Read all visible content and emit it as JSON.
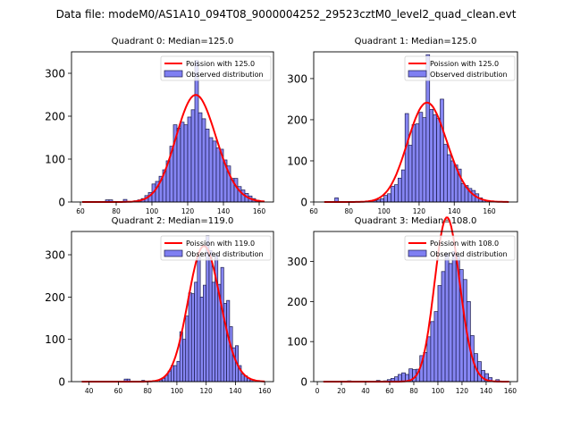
{
  "suptitle": "Data file: modeM0/AS1A10_094T08_9000004252_29523cztM0_level2_quad_clean.evt",
  "colors": {
    "bar_fill": "#7f7ff2",
    "bar_edge": "#1a1a4d",
    "poisson": "#ff0000"
  },
  "chart_data": [
    {
      "type": "bar",
      "title": "Quadrant 0: Median=125.0",
      "xlim": [
        55,
        168
      ],
      "ylim": [
        0,
        350
      ],
      "xticks": [
        60,
        80,
        100,
        120,
        140,
        160
      ],
      "yticks": [
        0,
        100,
        200,
        300
      ],
      "legend": [
        "Poission with 125.0",
        "Observed distribution"
      ],
      "legend_loc": "upper right",
      "median": 125.0,
      "bin_width": 2,
      "bins_x": [
        74,
        76,
        84,
        90,
        92,
        94,
        96,
        98,
        100,
        102,
        104,
        106,
        108,
        110,
        112,
        114,
        116,
        118,
        120,
        122,
        124,
        126,
        128,
        130,
        132,
        134,
        136,
        138,
        140,
        142,
        144,
        146,
        148,
        150,
        152,
        154,
        156,
        158,
        160
      ],
      "counts": [
        5,
        5,
        6,
        3,
        5,
        8,
        15,
        22,
        42,
        48,
        60,
        75,
        96,
        130,
        180,
        172,
        186,
        180,
        198,
        215,
        330,
        208,
        194,
        170,
        150,
        142,
        126,
        123,
        98,
        84,
        55,
        55,
        36,
        28,
        20,
        14,
        8,
        4,
        2
      ]
    },
    {
      "type": "bar",
      "title": "Quadrant 1: Median=125.0",
      "xlim": [
        60,
        176
      ],
      "ylim": [
        0,
        365
      ],
      "xticks": [
        60,
        80,
        100,
        120,
        140,
        160
      ],
      "yticks": [
        0,
        100,
        200,
        300
      ],
      "legend": [
        "Poission with 125.0",
        "Observed distribution"
      ],
      "legend_loc": "upper right",
      "median": 125.0,
      "bin_width": 2,
      "bins_x": [
        72,
        94,
        96,
        98,
        100,
        102,
        104,
        106,
        108,
        110,
        112,
        114,
        116,
        118,
        120,
        122,
        124,
        126,
        128,
        130,
        132,
        134,
        136,
        138,
        140,
        142,
        144,
        146,
        148,
        150,
        152,
        154,
        156
      ],
      "counts": [
        10,
        3,
        5,
        8,
        16,
        20,
        38,
        42,
        58,
        78,
        215,
        138,
        188,
        190,
        218,
        205,
        358,
        225,
        212,
        203,
        250,
        140,
        115,
        100,
        90,
        80,
        45,
        40,
        33,
        28,
        20,
        10,
        5
      ]
    },
    {
      "type": "bar",
      "title": "Quadrant 2: Median=119.0",
      "xlim": [
        28,
        166
      ],
      "ylim": [
        0,
        355
      ],
      "xticks": [
        40,
        60,
        80,
        100,
        120,
        140,
        160
      ],
      "yticks": [
        0,
        100,
        200,
        300
      ],
      "legend": [
        "Poission with 119.0",
        "Observed distribution"
      ],
      "legend_loc": "upper right",
      "median": 119.0,
      "bin_width": 2,
      "bins_x": [
        64,
        66,
        76,
        88,
        90,
        92,
        94,
        96,
        98,
        100,
        102,
        104,
        106,
        108,
        110,
        112,
        114,
        116,
        118,
        120,
        122,
        124,
        126,
        128,
        130,
        132,
        134,
        136,
        138,
        140,
        142,
        144,
        146,
        148,
        150
      ],
      "counts": [
        6,
        6,
        3,
        4,
        8,
        15,
        25,
        38,
        38,
        48,
        118,
        100,
        155,
        210,
        208,
        235,
        295,
        200,
        228,
        345,
        310,
        235,
        300,
        230,
        270,
        185,
        192,
        130,
        80,
        85,
        38,
        18,
        14,
        8,
        4
      ]
    },
    {
      "type": "bar",
      "title": "Quadrant 3: Median=108.0",
      "xlim": [
        -3,
        166
      ],
      "ylim": [
        0,
        375
      ],
      "xticks": [
        0,
        20,
        40,
        60,
        80,
        100,
        120,
        140,
        160
      ],
      "yticks": [
        0,
        100,
        200,
        300
      ],
      "legend": [
        "Poission with 108.0",
        "Observed distribution"
      ],
      "legend_loc": "upper right",
      "median": 108.0,
      "bin_width": 3,
      "bins_x": [
        25,
        49,
        55,
        58,
        61,
        64,
        67,
        70,
        73,
        76,
        79,
        82,
        85,
        88,
        91,
        94,
        97,
        100,
        103,
        106,
        109,
        112,
        115,
        118,
        121,
        124,
        127,
        130,
        133,
        136,
        139,
        142,
        148
      ],
      "counts": [
        2,
        3,
        2,
        5,
        8,
        12,
        18,
        22,
        18,
        32,
        30,
        31,
        65,
        73,
        112,
        150,
        175,
        240,
        275,
        320,
        295,
        325,
        315,
        280,
        255,
        200,
        115,
        70,
        50,
        28,
        20,
        10,
        5
      ]
    }
  ]
}
